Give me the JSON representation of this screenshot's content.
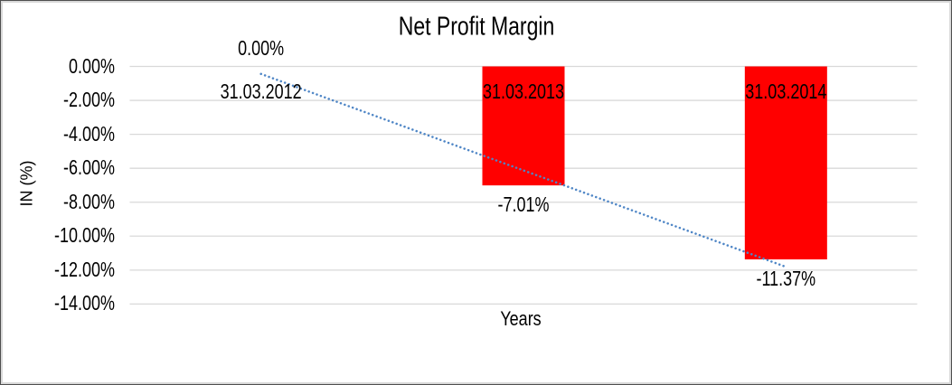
{
  "chart_data": {
    "type": "bar",
    "title": "Net Profit Margin",
    "xlabel": "Years",
    "ylabel": "IN (%)",
    "categories": [
      "31.03.2012",
      "31.03.2013",
      "31.03.2014"
    ],
    "values": [
      0,
      -7.01,
      -11.37
    ],
    "data_labels": [
      "0.00%",
      "-7.01%",
      "-11.37%"
    ],
    "y_ticks": [
      0,
      -2,
      -4,
      -6,
      -8,
      -10,
      -12,
      -14
    ],
    "y_tick_labels": [
      "0.00%",
      "-2.00%",
      "-4.00%",
      "-6.00%",
      "-8.00%",
      "-10.00%",
      "-12.00%",
      "-14.00%"
    ],
    "ylim": [
      -14,
      0
    ],
    "grid": true,
    "legend": false,
    "bar_color": "#FF0000",
    "gridline_color": "#D9D9D9",
    "text_color": "#000000",
    "trendline": {
      "type": "linear",
      "style": "dotted",
      "color": "#4F86C6"
    }
  }
}
